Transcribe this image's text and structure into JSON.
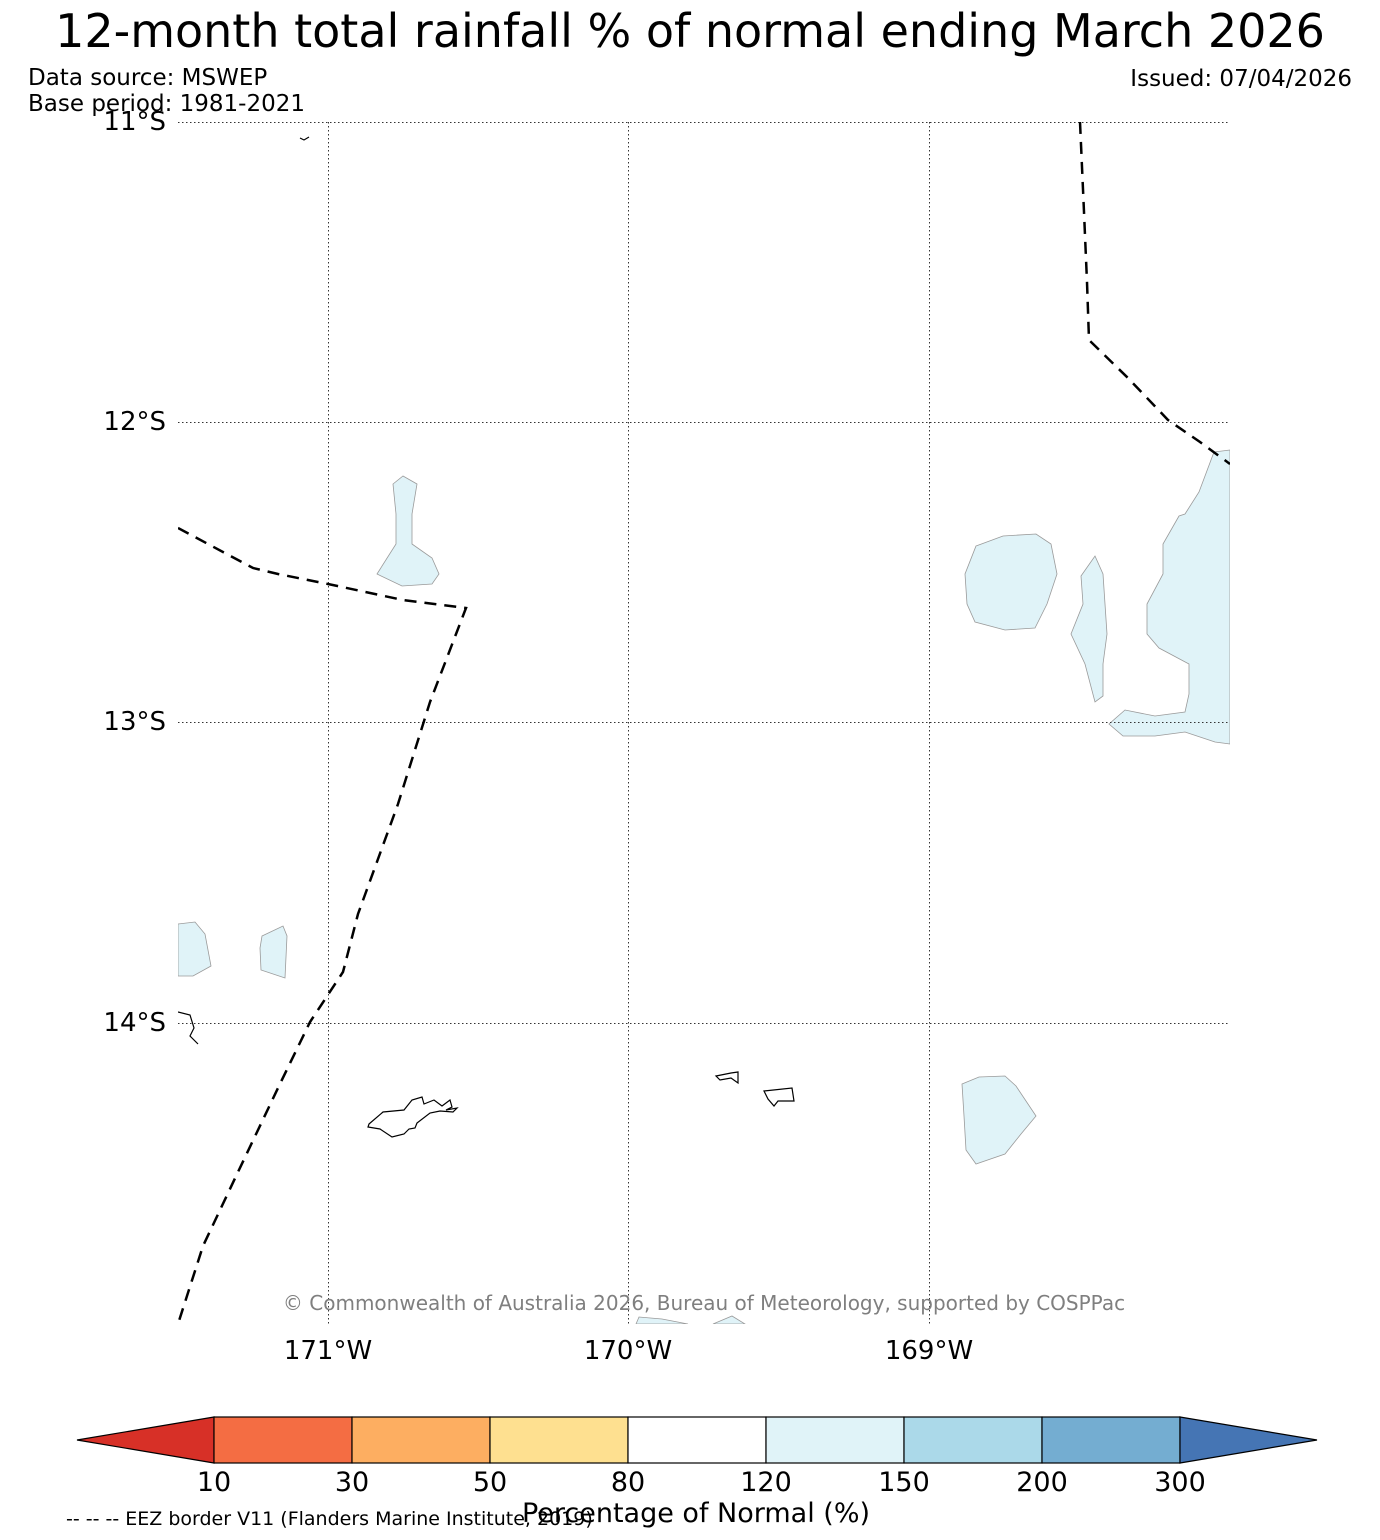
{
  "title": "12-month total rainfall % of normal ending March 2026",
  "data_source": "Data source: MSWEP",
  "base_period": "Base period: 1981-2021",
  "issued": "Issued: 07/04/2026",
  "copyright": "© Commonwealth of Australia 2026, Bureau of Meteorology, supported by COSPPac",
  "lat_labels": [
    "11°S",
    "12°S",
    "13°S",
    "14°S"
  ],
  "lon_labels": [
    "171°W",
    "170°W",
    "169°W"
  ],
  "colorbar": {
    "title": "Percentage of Normal (%)",
    "ticks": [
      "10",
      "30",
      "50",
      "80",
      "120",
      "150",
      "200",
      "300"
    ],
    "colors": {
      "below_10": "#d73027",
      "10_30": "#f46d43",
      "30_50": "#fdae61",
      "50_80": "#fee090",
      "80_120": "#ffffff",
      "120_150": "#e0f3f8",
      "150_200": "#abd9e9",
      "200_300": "#74add1",
      "above_300": "#4575b4"
    }
  },
  "legend_note": "-- -- -- EEZ border V11 (Flanders Marine Institute, 2019)",
  "map": {
    "region": "Samoa / American Samoa",
    "lat_range": [
      -15,
      -11
    ],
    "lon_range": [
      -171.5,
      -168
    ]
  }
}
